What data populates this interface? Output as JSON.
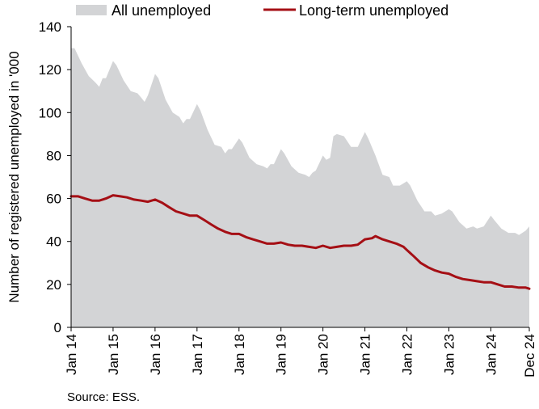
{
  "chart_data": {
    "type": "area",
    "ylabel": "Number of registered unemployed in '000",
    "xlabel": "",
    "ylim": [
      0,
      140
    ],
    "yticks": [
      0,
      20,
      40,
      60,
      80,
      100,
      120,
      140
    ],
    "xlim": [
      2014.0,
      2024.9167
    ],
    "xticks": [
      {
        "label": "Jan 14",
        "x": 2014.0
      },
      {
        "label": "Jan 15",
        "x": 2015.0
      },
      {
        "label": "Jan 16",
        "x": 2016.0
      },
      {
        "label": "Jan 17",
        "x": 2017.0
      },
      {
        "label": "Jan 18",
        "x": 2018.0
      },
      {
        "label": "Jan 19",
        "x": 2019.0
      },
      {
        "label": "Jan 20",
        "x": 2020.0
      },
      {
        "label": "Jan 21",
        "x": 2021.0
      },
      {
        "label": "Jan 22",
        "x": 2022.0
      },
      {
        "label": "Jan 23",
        "x": 2023.0
      },
      {
        "label": "Jan 24",
        "x": 2024.0
      },
      {
        "label": "Dec 24",
        "x": 2024.9167
      }
    ],
    "legend_position": "top",
    "grid": false,
    "series": [
      {
        "name": "All unemployed",
        "kind": "area",
        "color": "#d3d4d6",
        "points": [
          [
            2014.0,
            130
          ],
          [
            2014.08,
            130
          ],
          [
            2014.25,
            123
          ],
          [
            2014.42,
            117
          ],
          [
            2014.58,
            114
          ],
          [
            2014.67,
            112
          ],
          [
            2014.75,
            116
          ],
          [
            2014.83,
            116
          ],
          [
            2015.0,
            124
          ],
          [
            2015.08,
            122
          ],
          [
            2015.25,
            115
          ],
          [
            2015.42,
            110
          ],
          [
            2015.58,
            109
          ],
          [
            2015.67,
            107
          ],
          [
            2015.75,
            105
          ],
          [
            2015.83,
            108
          ],
          [
            2016.0,
            118
          ],
          [
            2016.08,
            116
          ],
          [
            2016.25,
            106
          ],
          [
            2016.42,
            100
          ],
          [
            2016.58,
            98
          ],
          [
            2016.67,
            95
          ],
          [
            2016.75,
            97
          ],
          [
            2016.83,
            97
          ],
          [
            2017.0,
            104
          ],
          [
            2017.08,
            101
          ],
          [
            2017.25,
            92
          ],
          [
            2017.42,
            85
          ],
          [
            2017.58,
            84
          ],
          [
            2017.67,
            81
          ],
          [
            2017.75,
            83
          ],
          [
            2017.83,
            83
          ],
          [
            2018.0,
            88
          ],
          [
            2018.08,
            86
          ],
          [
            2018.25,
            79
          ],
          [
            2018.42,
            76
          ],
          [
            2018.58,
            75
          ],
          [
            2018.67,
            74
          ],
          [
            2018.75,
            76
          ],
          [
            2018.83,
            76
          ],
          [
            2019.0,
            83
          ],
          [
            2019.08,
            81
          ],
          [
            2019.25,
            75
          ],
          [
            2019.42,
            72
          ],
          [
            2019.58,
            71
          ],
          [
            2019.67,
            70
          ],
          [
            2019.75,
            72
          ],
          [
            2019.83,
            73
          ],
          [
            2020.0,
            80
          ],
          [
            2020.08,
            78
          ],
          [
            2020.17,
            79
          ],
          [
            2020.25,
            89
          ],
          [
            2020.33,
            90
          ],
          [
            2020.5,
            89
          ],
          [
            2020.67,
            84
          ],
          [
            2020.83,
            84
          ],
          [
            2021.0,
            91
          ],
          [
            2021.08,
            88
          ],
          [
            2021.25,
            80
          ],
          [
            2021.42,
            71
          ],
          [
            2021.58,
            70
          ],
          [
            2021.67,
            66
          ],
          [
            2021.83,
            66
          ],
          [
            2022.0,
            68
          ],
          [
            2022.08,
            66
          ],
          [
            2022.25,
            59
          ],
          [
            2022.42,
            54
          ],
          [
            2022.58,
            54
          ],
          [
            2022.67,
            52
          ],
          [
            2022.83,
            53
          ],
          [
            2023.0,
            55
          ],
          [
            2023.08,
            54
          ],
          [
            2023.25,
            49
          ],
          [
            2023.42,
            46
          ],
          [
            2023.58,
            47
          ],
          [
            2023.67,
            46
          ],
          [
            2023.83,
            47
          ],
          [
            2024.0,
            52
          ],
          [
            2024.08,
            50
          ],
          [
            2024.25,
            46
          ],
          [
            2024.42,
            44
          ],
          [
            2024.58,
            44
          ],
          [
            2024.67,
            43
          ],
          [
            2024.83,
            45
          ],
          [
            2024.9167,
            47
          ]
        ]
      },
      {
        "name": "Long-term unemployed",
        "kind": "line",
        "color": "#a50f15",
        "points": [
          [
            2014.0,
            61
          ],
          [
            2014.17,
            61
          ],
          [
            2014.33,
            60
          ],
          [
            2014.5,
            59
          ],
          [
            2014.67,
            59
          ],
          [
            2014.83,
            60
          ],
          [
            2015.0,
            61.5
          ],
          [
            2015.17,
            61
          ],
          [
            2015.33,
            60.5
          ],
          [
            2015.5,
            59.5
          ],
          [
            2015.67,
            59
          ],
          [
            2015.83,
            58.5
          ],
          [
            2016.0,
            59.5
          ],
          [
            2016.17,
            58
          ],
          [
            2016.33,
            56
          ],
          [
            2016.5,
            54
          ],
          [
            2016.67,
            53
          ],
          [
            2016.83,
            52
          ],
          [
            2017.0,
            52
          ],
          [
            2017.17,
            50
          ],
          [
            2017.33,
            48
          ],
          [
            2017.5,
            46
          ],
          [
            2017.67,
            44.5
          ],
          [
            2017.83,
            43.5
          ],
          [
            2018.0,
            43.5
          ],
          [
            2018.17,
            42
          ],
          [
            2018.33,
            41
          ],
          [
            2018.5,
            40
          ],
          [
            2018.67,
            39
          ],
          [
            2018.83,
            39
          ],
          [
            2019.0,
            39.5
          ],
          [
            2019.17,
            38.5
          ],
          [
            2019.33,
            38
          ],
          [
            2019.5,
            38
          ],
          [
            2019.67,
            37.5
          ],
          [
            2019.83,
            37
          ],
          [
            2020.0,
            38
          ],
          [
            2020.17,
            37
          ],
          [
            2020.33,
            37.5
          ],
          [
            2020.5,
            38
          ],
          [
            2020.67,
            38
          ],
          [
            2020.83,
            38.5
          ],
          [
            2021.0,
            41
          ],
          [
            2021.17,
            41.5
          ],
          [
            2021.25,
            42.5
          ],
          [
            2021.42,
            41
          ],
          [
            2021.58,
            40
          ],
          [
            2021.75,
            39
          ],
          [
            2021.92,
            37.5
          ],
          [
            2022.0,
            36
          ],
          [
            2022.17,
            33
          ],
          [
            2022.33,
            30
          ],
          [
            2022.5,
            28
          ],
          [
            2022.67,
            26.5
          ],
          [
            2022.83,
            25.5
          ],
          [
            2023.0,
            25
          ],
          [
            2023.17,
            23.5
          ],
          [
            2023.33,
            22.5
          ],
          [
            2023.5,
            22
          ],
          [
            2023.67,
            21.5
          ],
          [
            2023.83,
            21
          ],
          [
            2024.0,
            21
          ],
          [
            2024.17,
            20
          ],
          [
            2024.33,
            19
          ],
          [
            2024.5,
            19
          ],
          [
            2024.67,
            18.5
          ],
          [
            2024.83,
            18.5
          ],
          [
            2024.9167,
            18
          ]
        ]
      }
    ],
    "source": "Source: ESS."
  }
}
